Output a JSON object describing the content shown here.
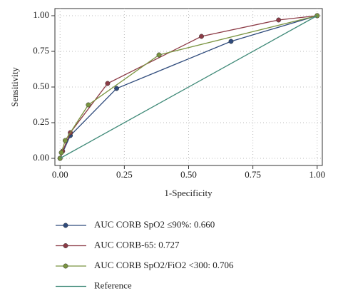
{
  "chart_data": {
    "type": "line",
    "xlabel": "1-Specificity",
    "ylabel": "Sensitivity",
    "xlim": [
      -0.02,
      1.02
    ],
    "ylim": [
      -0.05,
      1.05
    ],
    "xticks": [
      {
        "value": 0,
        "label": "0.00"
      },
      {
        "value": 0.25,
        "label": "0.25"
      },
      {
        "value": 0.5,
        "label": "0.50"
      },
      {
        "value": 0.75,
        "label": "0.75"
      },
      {
        "value": 1,
        "label": "1.00"
      }
    ],
    "yticks": [
      {
        "value": 0,
        "label": "0.00"
      },
      {
        "value": 0.25,
        "label": "0.25"
      },
      {
        "value": 0.5,
        "label": "0.50"
      },
      {
        "value": 0.75,
        "label": "0.75"
      },
      {
        "value": 1,
        "label": "1.00"
      }
    ],
    "grid": true,
    "series": [
      {
        "name": "AUC CORB SpO2 ≤90%: 0.660",
        "color": "#2f4b7c",
        "markers": true,
        "x": [
          0,
          0.04,
          0.22,
          0.665,
          1
        ],
        "values": [
          0,
          0.16,
          0.49,
          0.82,
          1
        ]
      },
      {
        "name": "AUC CORB-65: 0.727",
        "color": "#8c3b46",
        "markers": true,
        "x": [
          0,
          0.01,
          0.04,
          0.185,
          0.55,
          0.85,
          1
        ],
        "values": [
          0,
          0.05,
          0.18,
          0.525,
          0.855,
          0.97,
          1
        ]
      },
      {
        "name": "AUC CORB SpO2/FiO2 <300: 0.706",
        "color": "#7a9440",
        "markers": true,
        "x": [
          0,
          0.005,
          0.02,
          0.11,
          0.385,
          1
        ],
        "values": [
          0,
          0.04,
          0.125,
          0.375,
          0.725,
          1
        ]
      },
      {
        "name": "Reference",
        "color": "#3f8a78",
        "markers": false,
        "x": [
          0,
          1
        ],
        "values": [
          0,
          1
        ]
      }
    ]
  }
}
